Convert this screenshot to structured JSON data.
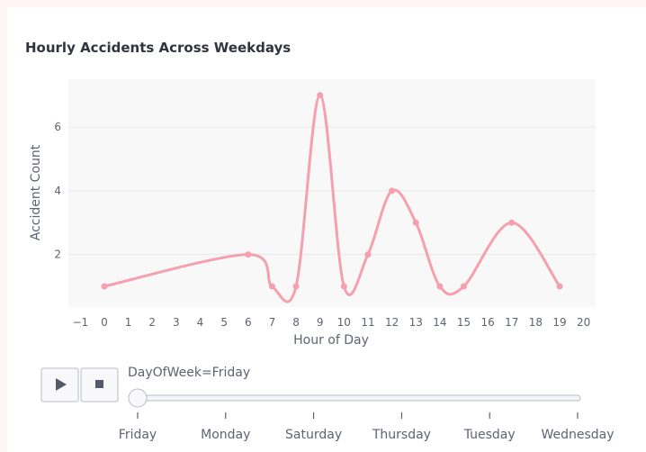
{
  "chart_data": {
    "type": "line",
    "title": "Hourly Accidents Across Weekdays",
    "xlabel": "Hour of Day",
    "ylabel": "Accident Count",
    "xlim": [
      -1.5,
      20.5
    ],
    "ylim": [
      0.35,
      7.5
    ],
    "x_ticks": [
      -1,
      0,
      1,
      2,
      3,
      4,
      5,
      6,
      7,
      8,
      9,
      10,
      11,
      12,
      13,
      14,
      15,
      16,
      17,
      18,
      19,
      20
    ],
    "y_ticks": [
      2,
      4,
      6
    ],
    "grid": true,
    "line_color": "#f4a0ae",
    "series": [
      {
        "x": [
          0,
          6,
          7,
          8,
          9,
          10,
          11,
          12,
          13,
          14,
          15,
          17,
          19
        ],
        "values": [
          1,
          2,
          1,
          1,
          7,
          1,
          2,
          4,
          3,
          1,
          1,
          3,
          1
        ]
      }
    ]
  },
  "player": {
    "play_icon": "play-icon",
    "stop_icon": "stop-icon",
    "current_label": "DayOfWeek=Friday",
    "steps": [
      "Friday",
      "Monday",
      "Saturday",
      "Thursday",
      "Tuesday",
      "Wednesday"
    ],
    "current_index": 0
  }
}
